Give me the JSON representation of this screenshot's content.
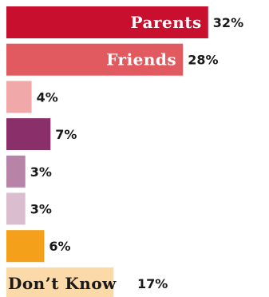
{
  "chart_data": {
    "type": "bar",
    "orientation": "horizontal",
    "categories": [
      "Parents",
      "Friends",
      "",
      "",
      "",
      "",
      "",
      "Don’t Know"
    ],
    "values": [
      32,
      28,
      4,
      7,
      3,
      3,
      6,
      17
    ],
    "value_labels": [
      "32%",
      "28%",
      "4%",
      "7%",
      "3%",
      "3%",
      "6%",
      "17%"
    ],
    "colors": [
      "#c8102e",
      "#e05a5f",
      "#f0a8a8",
      "#8b2f6b",
      "#b784a7",
      "#dbbdd0",
      "#f5a01a",
      "#fcd9a8"
    ],
    "label_colors": [
      "#ffffff",
      "#ffffff",
      "#ffffff",
      "#ffffff",
      "#ffffff",
      "#ffffff",
      "#ffffff",
      "#1a1a1a"
    ],
    "unit": "%",
    "title": "",
    "xlabel": "",
    "ylabel": "",
    "grid": false,
    "legend": "none"
  }
}
